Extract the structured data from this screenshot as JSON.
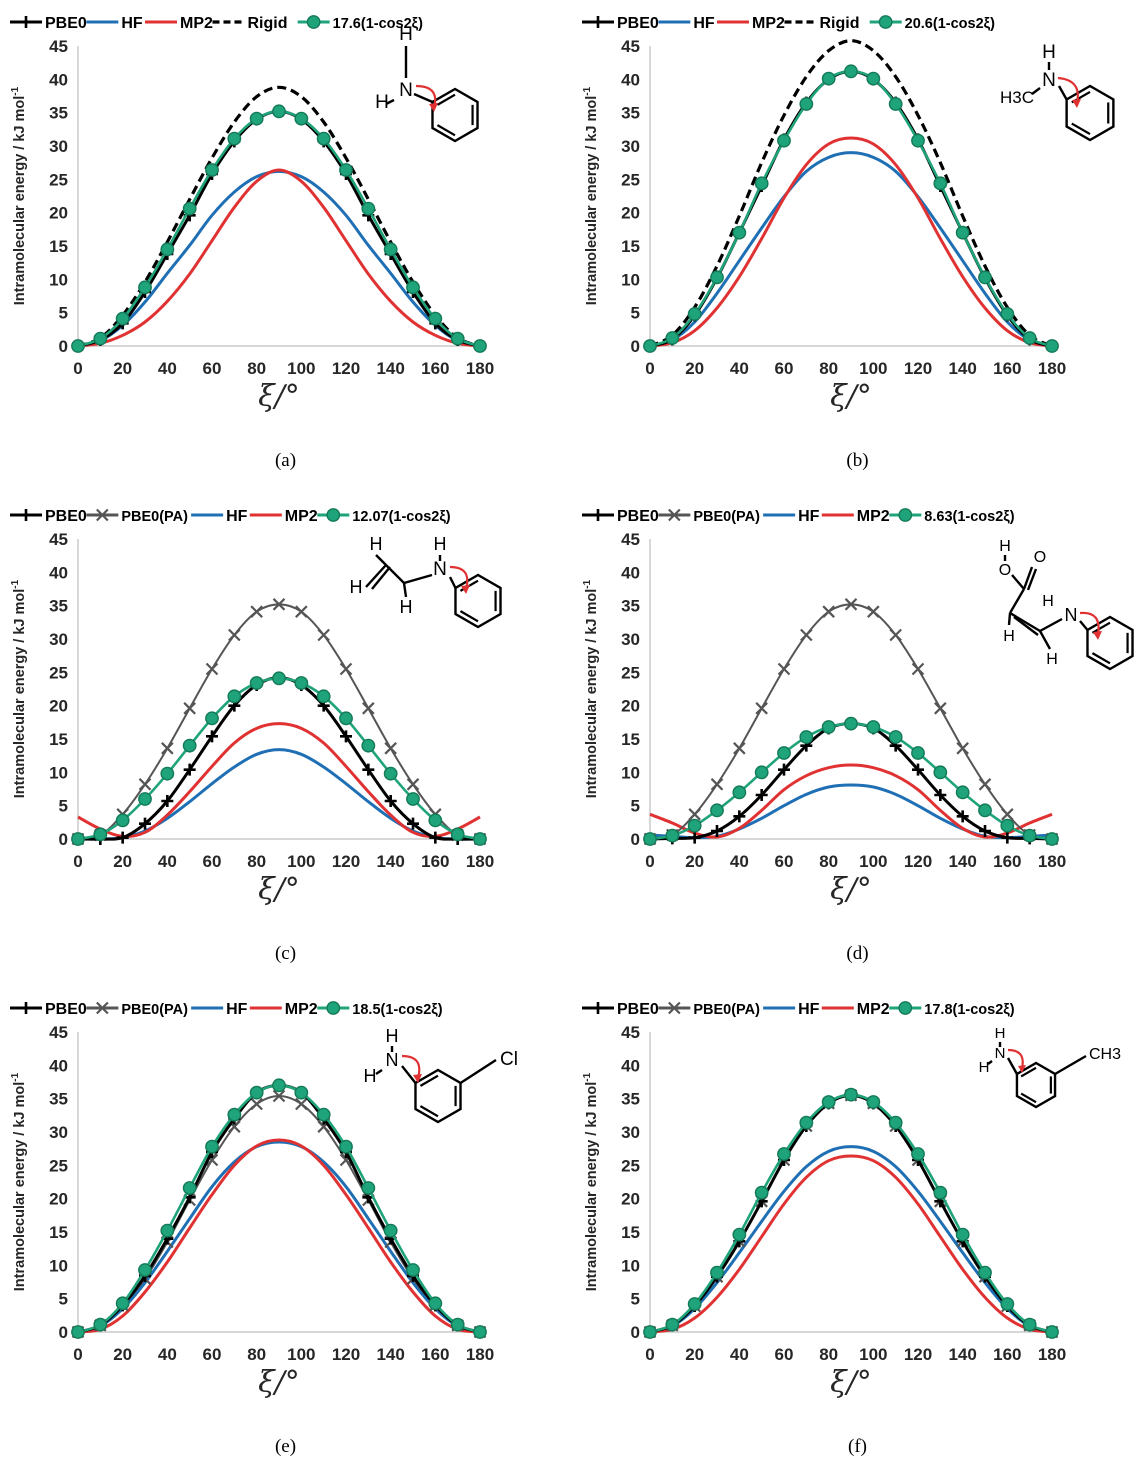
{
  "chart_data": [
    {
      "panel": "a",
      "type": "line",
      "caption": "(a)",
      "ylabel": "Intramolecular energy / kJ mol-1",
      "xlabel": "ξ/°",
      "xlim": [
        0,
        180
      ],
      "ylim": [
        0,
        45
      ],
      "xticks": [
        0,
        20,
        40,
        60,
        80,
        100,
        120,
        140,
        160,
        180
      ],
      "yticks": [
        0,
        5,
        10,
        15,
        20,
        25,
        30,
        35,
        40,
        45
      ],
      "legend_position": "top",
      "molecule": "aniline",
      "molecule_labels": [
        "H",
        "N",
        "H"
      ],
      "x": [
        0,
        10,
        20,
        30,
        40,
        50,
        60,
        70,
        80,
        90,
        100,
        110,
        120,
        130,
        140,
        150,
        160,
        170,
        180
      ],
      "series": [
        {
          "name": "PBE0",
          "style": "plus",
          "color": "#000000",
          "values": [
            0,
            0.9,
            3.4,
            8.1,
            13.8,
            19.6,
            25.8,
            30.7,
            34.0,
            35.2,
            34.0,
            30.7,
            25.8,
            19.6,
            13.8,
            8.1,
            3.4,
            0.9,
            0
          ]
        },
        {
          "name": "HF",
          "style": "line",
          "color": "#1f6fb5",
          "values": [
            0,
            0.8,
            3.1,
            6.6,
            10.9,
            15.1,
            19.6,
            23.1,
            25.4,
            26.2,
            25.4,
            23.1,
            19.6,
            15.1,
            10.9,
            6.6,
            3.1,
            0.8,
            0
          ]
        },
        {
          "name": "MP2",
          "style": "line",
          "color": "#e03232",
          "values": [
            0,
            0.4,
            1.6,
            3.6,
            6.7,
            10.8,
            15.8,
            20.8,
            24.7,
            26.4,
            24.7,
            20.8,
            15.8,
            10.8,
            6.7,
            3.6,
            1.6,
            0.4,
            0
          ]
        },
        {
          "name": "Rigid",
          "style": "dashed",
          "color": "#000000",
          "values": [
            0,
            1.2,
            4.6,
            9.6,
            15.6,
            22.0,
            28.2,
            33.6,
            37.4,
            38.8,
            37.4,
            33.6,
            28.2,
            22.0,
            15.6,
            9.6,
            4.6,
            1.2,
            0
          ]
        },
        {
          "name": "17.6(1-cos2ξ)",
          "style": "circle",
          "color": "#1fa37a",
          "values": [
            0,
            1.1,
            4.1,
            8.8,
            14.5,
            20.6,
            26.4,
            31.1,
            34.1,
            35.2,
            34.1,
            31.1,
            26.4,
            20.6,
            14.5,
            8.8,
            4.1,
            1.1,
            0
          ]
        }
      ]
    },
    {
      "panel": "b",
      "type": "line",
      "caption": "(b)",
      "ylabel": "Intramolecular energy / kJ mol-1",
      "xlabel": "ξ/°",
      "xlim": [
        0,
        180
      ],
      "ylim": [
        0,
        45
      ],
      "xticks": [
        0,
        20,
        40,
        60,
        80,
        100,
        120,
        140,
        160,
        180
      ],
      "yticks": [
        0,
        5,
        10,
        15,
        20,
        25,
        30,
        35,
        40,
        45
      ],
      "legend_position": "top",
      "molecule": "N-methylaniline",
      "molecule_labels": [
        "H",
        "N",
        "H3C"
      ],
      "x": [
        0,
        10,
        20,
        30,
        40,
        50,
        60,
        70,
        80,
        90,
        100,
        110,
        120,
        130,
        140,
        150,
        160,
        170,
        180
      ],
      "series": [
        {
          "name": "PBE0",
          "style": "plus",
          "color": "#000000",
          "values": [
            0,
            1.0,
            4.6,
            10.2,
            17.0,
            24.0,
            31.0,
            36.5,
            40.0,
            41.2,
            40.0,
            36.5,
            31.0,
            24.0,
            17.0,
            10.2,
            4.6,
            1.0,
            0
          ]
        },
        {
          "name": "HF",
          "style": "line",
          "color": "#1f6fb5",
          "values": [
            0,
            0.9,
            3.6,
            7.9,
            12.8,
            17.7,
            22.4,
            26.2,
            28.3,
            29.0,
            28.3,
            26.2,
            22.4,
            17.7,
            12.8,
            7.9,
            3.6,
            0.9,
            0
          ]
        },
        {
          "name": "MP2",
          "style": "line",
          "color": "#e03232",
          "values": [
            0,
            0.5,
            2.3,
            5.7,
            10.4,
            16.1,
            22.2,
            27.2,
            30.3,
            31.2,
            30.3,
            27.2,
            22.2,
            16.1,
            10.4,
            5.7,
            2.3,
            0.5,
            0
          ]
        },
        {
          "name": "Rigid",
          "style": "dashed",
          "color": "#000000",
          "values": [
            0,
            1.6,
            5.8,
            12.0,
            19.5,
            27.5,
            34.6,
            40.4,
            44.3,
            45.8,
            44.3,
            40.4,
            34.6,
            27.5,
            19.5,
            12.0,
            5.8,
            1.6,
            0
          ]
        },
        {
          "name": "20.6(1-cos2ξ)",
          "style": "circle",
          "color": "#1fa37a",
          "values": [
            0,
            1.2,
            4.8,
            10.3,
            17.0,
            24.4,
            30.8,
            36.3,
            40.1,
            41.2,
            40.1,
            36.3,
            30.8,
            24.4,
            17.0,
            10.3,
            4.8,
            1.2,
            0
          ]
        }
      ]
    },
    {
      "panel": "c",
      "type": "line",
      "caption": "(c)",
      "ylabel": "Intramolecular energy / kJ mol-1",
      "xlabel": "ξ/°",
      "xlim": [
        0,
        180
      ],
      "ylim": [
        0,
        45
      ],
      "xticks": [
        0,
        20,
        40,
        60,
        80,
        100,
        120,
        140,
        160,
        180
      ],
      "yticks": [
        0,
        5,
        10,
        15,
        20,
        25,
        30,
        35,
        40,
        45
      ],
      "legend_position": "top",
      "molecule": "N-vinylaniline",
      "molecule_labels": [
        "H",
        "H",
        "H",
        "H",
        "N"
      ],
      "x": [
        0,
        10,
        20,
        30,
        40,
        50,
        60,
        70,
        80,
        90,
        100,
        110,
        120,
        130,
        140,
        150,
        160,
        170,
        180
      ],
      "series": [
        {
          "name": "PBE0",
          "style": "plus",
          "color": "#000000",
          "values": [
            0,
            0,
            0.2,
            2.3,
            5.7,
            10.4,
            15.4,
            20.0,
            23.1,
            24.2,
            23.1,
            20.0,
            15.4,
            10.4,
            5.7,
            2.3,
            0.2,
            0,
            0
          ]
        },
        {
          "name": "PBE0(PA)",
          "style": "cross",
          "color": "#555555",
          "values": [
            0,
            0.6,
            3.7,
            8.2,
            13.6,
            19.6,
            25.5,
            30.6,
            34.1,
            35.2,
            34.1,
            30.6,
            25.5,
            19.6,
            13.6,
            8.2,
            3.7,
            0.6,
            0
          ]
        },
        {
          "name": "HF",
          "style": "line",
          "color": "#1f6fb5",
          "values": [
            0,
            0,
            0.2,
            1.2,
            3.1,
            5.6,
            8.3,
            10.8,
            12.7,
            13.4,
            12.7,
            10.8,
            8.3,
            5.6,
            3.1,
            1.2,
            0.2,
            0,
            0
          ]
        },
        {
          "name": "MP2",
          "style": "line",
          "color": "#e03232",
          "values": [
            3.3,
            1.5,
            0.4,
            1.0,
            3.6,
            7.1,
            10.9,
            14.4,
            16.6,
            17.3,
            16.6,
            14.4,
            10.9,
            7.1,
            3.6,
            1.0,
            0.4,
            1.5,
            3.3
          ]
        },
        {
          "name": "12.07(1-cos2ξ)",
          "style": "circle",
          "color": "#1fa37a",
          "values": [
            0,
            0.7,
            2.8,
            6.0,
            9.8,
            14.0,
            18.1,
            21.4,
            23.4,
            24.1,
            23.4,
            21.4,
            18.1,
            14.0,
            9.8,
            6.0,
            2.8,
            0.7,
            0
          ]
        }
      ]
    },
    {
      "panel": "d",
      "type": "line",
      "caption": "(d)",
      "ylabel": "Intramolecular energy / kJ mol-1",
      "xlabel": "ξ/°",
      "xlim": [
        0,
        180
      ],
      "ylim": [
        0,
        45
      ],
      "xticks": [
        0,
        20,
        40,
        60,
        80,
        100,
        120,
        140,
        160,
        180
      ],
      "yticks": [
        0,
        5,
        10,
        15,
        20,
        25,
        30,
        35,
        40,
        45
      ],
      "legend_position": "top",
      "molecule": "3-anilinoacrylic acid",
      "molecule_labels": [
        "H",
        "O",
        "O",
        "H",
        "N",
        "H"
      ],
      "x": [
        0,
        10,
        20,
        30,
        40,
        50,
        60,
        70,
        80,
        90,
        100,
        110,
        120,
        130,
        140,
        150,
        160,
        170,
        180
      ],
      "series": [
        {
          "name": "PBE0",
          "style": "plus",
          "color": "#000000",
          "values": [
            0,
            0.1,
            0.2,
            1.2,
            3.4,
            6.6,
            10.4,
            14.0,
            16.6,
            17.3,
            16.6,
            14.0,
            10.4,
            6.6,
            3.4,
            1.2,
            0.2,
            0.1,
            0
          ]
        },
        {
          "name": "PBE0(PA)",
          "style": "cross",
          "color": "#555555",
          "values": [
            0,
            0.6,
            3.7,
            8.2,
            13.6,
            19.6,
            25.5,
            30.6,
            34.1,
            35.2,
            34.1,
            30.6,
            25.5,
            19.6,
            13.6,
            8.2,
            3.7,
            0.6,
            0
          ]
        },
        {
          "name": "HF",
          "style": "line",
          "color": "#1f6fb5",
          "values": [
            0.6,
            0.4,
            0.2,
            0.4,
            1.5,
            3.1,
            5.0,
            6.7,
            7.8,
            8.1,
            7.8,
            6.7,
            5.0,
            3.1,
            1.5,
            0.4,
            0.2,
            0.4,
            0.6
          ]
        },
        {
          "name": "MP2",
          "style": "line",
          "color": "#e03232",
          "values": [
            3.7,
            2.4,
            0.9,
            0.3,
            1.6,
            4.3,
            7.4,
            9.5,
            10.7,
            11.1,
            10.7,
            9.5,
            7.4,
            4.3,
            1.6,
            0.3,
            0.9,
            2.4,
            3.7
          ]
        },
        {
          "name": "8.63(1-cos2ξ)",
          "style": "circle",
          "color": "#1fa37a",
          "values": [
            0,
            0.5,
            2.0,
            4.3,
            7.0,
            10.0,
            12.9,
            15.3,
            16.8,
            17.3,
            16.8,
            15.3,
            12.9,
            10.0,
            7.0,
            4.3,
            2.0,
            0.5,
            0
          ]
        }
      ]
    },
    {
      "panel": "e",
      "type": "line",
      "caption": "(e)",
      "ylabel": "Intramolecular energy / kJ mol-1",
      "xlabel": "ξ/°",
      "xlim": [
        0,
        180
      ],
      "ylim": [
        0,
        45
      ],
      "xticks": [
        0,
        20,
        40,
        60,
        80,
        100,
        120,
        140,
        160,
        180
      ],
      "yticks": [
        0,
        5,
        10,
        15,
        20,
        25,
        30,
        35,
        40,
        45
      ],
      "legend_position": "top",
      "molecule": "3-chloroaniline",
      "molecule_labels": [
        "H",
        "N",
        "H",
        "Cl"
      ],
      "x": [
        0,
        10,
        20,
        30,
        40,
        50,
        60,
        70,
        80,
        90,
        100,
        110,
        120,
        130,
        140,
        150,
        160,
        170,
        180
      ],
      "series": [
        {
          "name": "PBE0",
          "style": "plus",
          "color": "#000000",
          "values": [
            0,
            1.0,
            4.0,
            8.4,
            14.0,
            20.2,
            27.0,
            32.0,
            35.9,
            37.0,
            35.9,
            32.0,
            27.0,
            20.2,
            14.0,
            8.4,
            4.0,
            1.0,
            0
          ]
        },
        {
          "name": "PBE0(PA)",
          "style": "cross",
          "color": "#555555",
          "values": [
            0,
            1.0,
            4.0,
            8.0,
            13.5,
            19.8,
            25.8,
            30.8,
            34.2,
            35.4,
            34.2,
            30.8,
            25.8,
            19.8,
            13.5,
            8.0,
            4.0,
            1.0,
            0
          ]
        },
        {
          "name": "HF",
          "style": "line",
          "color": "#1f6fb5",
          "values": [
            0,
            0.9,
            3.5,
            7.4,
            12.1,
            17.0,
            21.8,
            25.5,
            27.8,
            28.5,
            27.8,
            25.5,
            21.8,
            17.0,
            12.1,
            7.4,
            3.5,
            0.9,
            0
          ]
        },
        {
          "name": "MP2",
          "style": "line",
          "color": "#e03232",
          "values": [
            0,
            0.4,
            2.4,
            6.0,
            10.5,
            15.6,
            20.6,
            25.0,
            27.9,
            28.8,
            27.9,
            25.0,
            20.6,
            15.6,
            10.5,
            6.0,
            2.4,
            0.4,
            0
          ]
        },
        {
          "name": "18.5(1-cos2ξ)",
          "style": "circle",
          "color": "#1fa37a",
          "values": [
            0,
            1.1,
            4.3,
            9.3,
            15.2,
            21.6,
            27.8,
            32.6,
            35.9,
            37.0,
            35.9,
            32.6,
            27.8,
            21.6,
            15.2,
            9.3,
            4.3,
            1.1,
            0
          ]
        }
      ]
    },
    {
      "panel": "f",
      "type": "line",
      "caption": "(f)",
      "ylabel": "Intramolecular energy / kJ mol-1",
      "xlabel": "ξ/°",
      "xlim": [
        0,
        180
      ],
      "ylim": [
        0,
        45
      ],
      "xticks": [
        0,
        20,
        40,
        60,
        80,
        100,
        120,
        140,
        160,
        180
      ],
      "yticks": [
        0,
        5,
        10,
        15,
        20,
        25,
        30,
        35,
        40,
        45
      ],
      "legend_position": "top",
      "molecule": "3-methylaniline",
      "molecule_labels": [
        "H",
        "N",
        "H",
        "CH3"
      ],
      "x": [
        0,
        10,
        20,
        30,
        40,
        50,
        60,
        70,
        80,
        90,
        100,
        110,
        120,
        130,
        140,
        150,
        160,
        170,
        180
      ],
      "series": [
        {
          "name": "PBE0",
          "style": "plus",
          "color": "#000000",
          "values": [
            0,
            1.0,
            3.9,
            8.3,
            13.6,
            19.6,
            25.8,
            30.9,
            34.3,
            35.5,
            34.3,
            30.9,
            25.8,
            19.6,
            13.6,
            8.3,
            3.9,
            1.0,
            0
          ]
        },
        {
          "name": "PBE0(PA)",
          "style": "cross",
          "color": "#555555",
          "values": [
            0,
            1.0,
            3.9,
            8.3,
            13.6,
            19.6,
            25.8,
            30.9,
            34.3,
            35.5,
            34.3,
            30.9,
            25.8,
            19.6,
            13.6,
            8.3,
            3.9,
            1.0,
            0
          ]
        },
        {
          "name": "HF",
          "style": "line",
          "color": "#1f6fb5",
          "values": [
            0,
            0.9,
            3.5,
            7.4,
            11.9,
            16.6,
            21.1,
            24.8,
            27.1,
            27.8,
            27.1,
            24.8,
            21.1,
            16.6,
            11.9,
            7.4,
            3.5,
            0.9,
            0
          ]
        },
        {
          "name": "MP2",
          "style": "line",
          "color": "#e03232",
          "values": [
            0,
            0.4,
            2.1,
            5.2,
            9.4,
            14.3,
            19.2,
            23.2,
            25.7,
            26.4,
            25.7,
            23.2,
            19.2,
            14.3,
            9.4,
            5.2,
            2.1,
            0.4,
            0
          ]
        },
        {
          "name": "17.8(1-cos2ξ)",
          "style": "circle",
          "color": "#1fa37a",
          "values": [
            0,
            1.1,
            4.2,
            8.9,
            14.6,
            20.9,
            26.7,
            31.4,
            34.5,
            35.6,
            34.5,
            31.4,
            26.7,
            20.9,
            14.6,
            8.9,
            4.2,
            1.1,
            0
          ]
        }
      ]
    }
  ]
}
